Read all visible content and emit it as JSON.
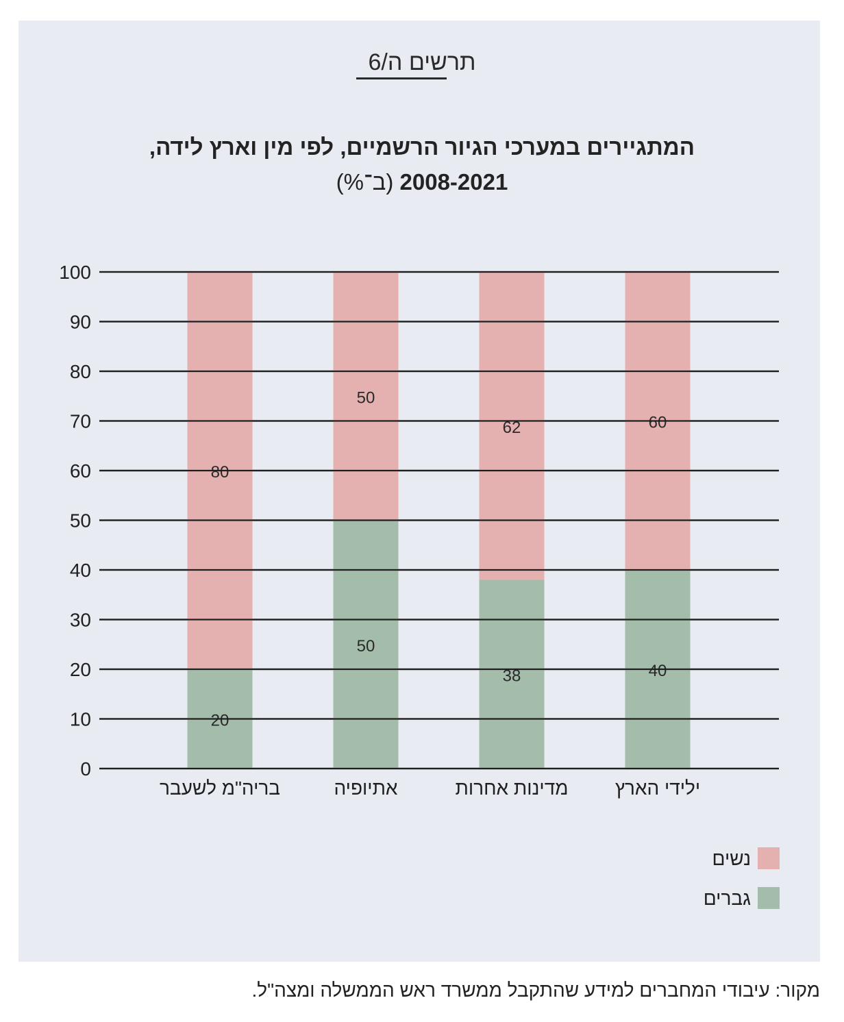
{
  "figure_label": "תרשים ה/6",
  "title_line1": "המתגיירים במערכי הגיור הרשמיים, לפי מין וארץ לידה,",
  "title_years": "2008-2021",
  "title_unit": "(ב־%)",
  "source": "מקור: עיבודי המחברים למידע שהתקבל ממשרד ראש הממשלה ומצה\"ל.",
  "colors": {
    "women": "#e4b1b0",
    "men": "#a4bdaa",
    "panel": "#e8ebf1",
    "grid": "#1f1f1f"
  },
  "chart_data": {
    "type": "bar",
    "stacked": true,
    "title": "המתגיירים במערכי הגיור הרשמיים, לפי מין וארץ לידה, 2008-2021 (ב־%)",
    "categories": [
      "בריה\"מ לשעבר",
      "אתיופיה",
      "מדינות אחרות",
      "ילידי הארץ"
    ],
    "series": [
      {
        "name": "גברים",
        "values": [
          20,
          50,
          38,
          40
        ],
        "color": "#a4bdaa"
      },
      {
        "name": "נשים",
        "values": [
          80,
          50,
          62,
          60
        ],
        "color": "#e4b1b0"
      }
    ],
    "yticks": [
      0,
      10,
      20,
      30,
      40,
      50,
      60,
      70,
      80,
      90,
      100
    ],
    "ylim": [
      0,
      100
    ],
    "grid": true,
    "legend_position": "bottom-right",
    "legend_order": [
      "נשים",
      "גברים"
    ]
  }
}
